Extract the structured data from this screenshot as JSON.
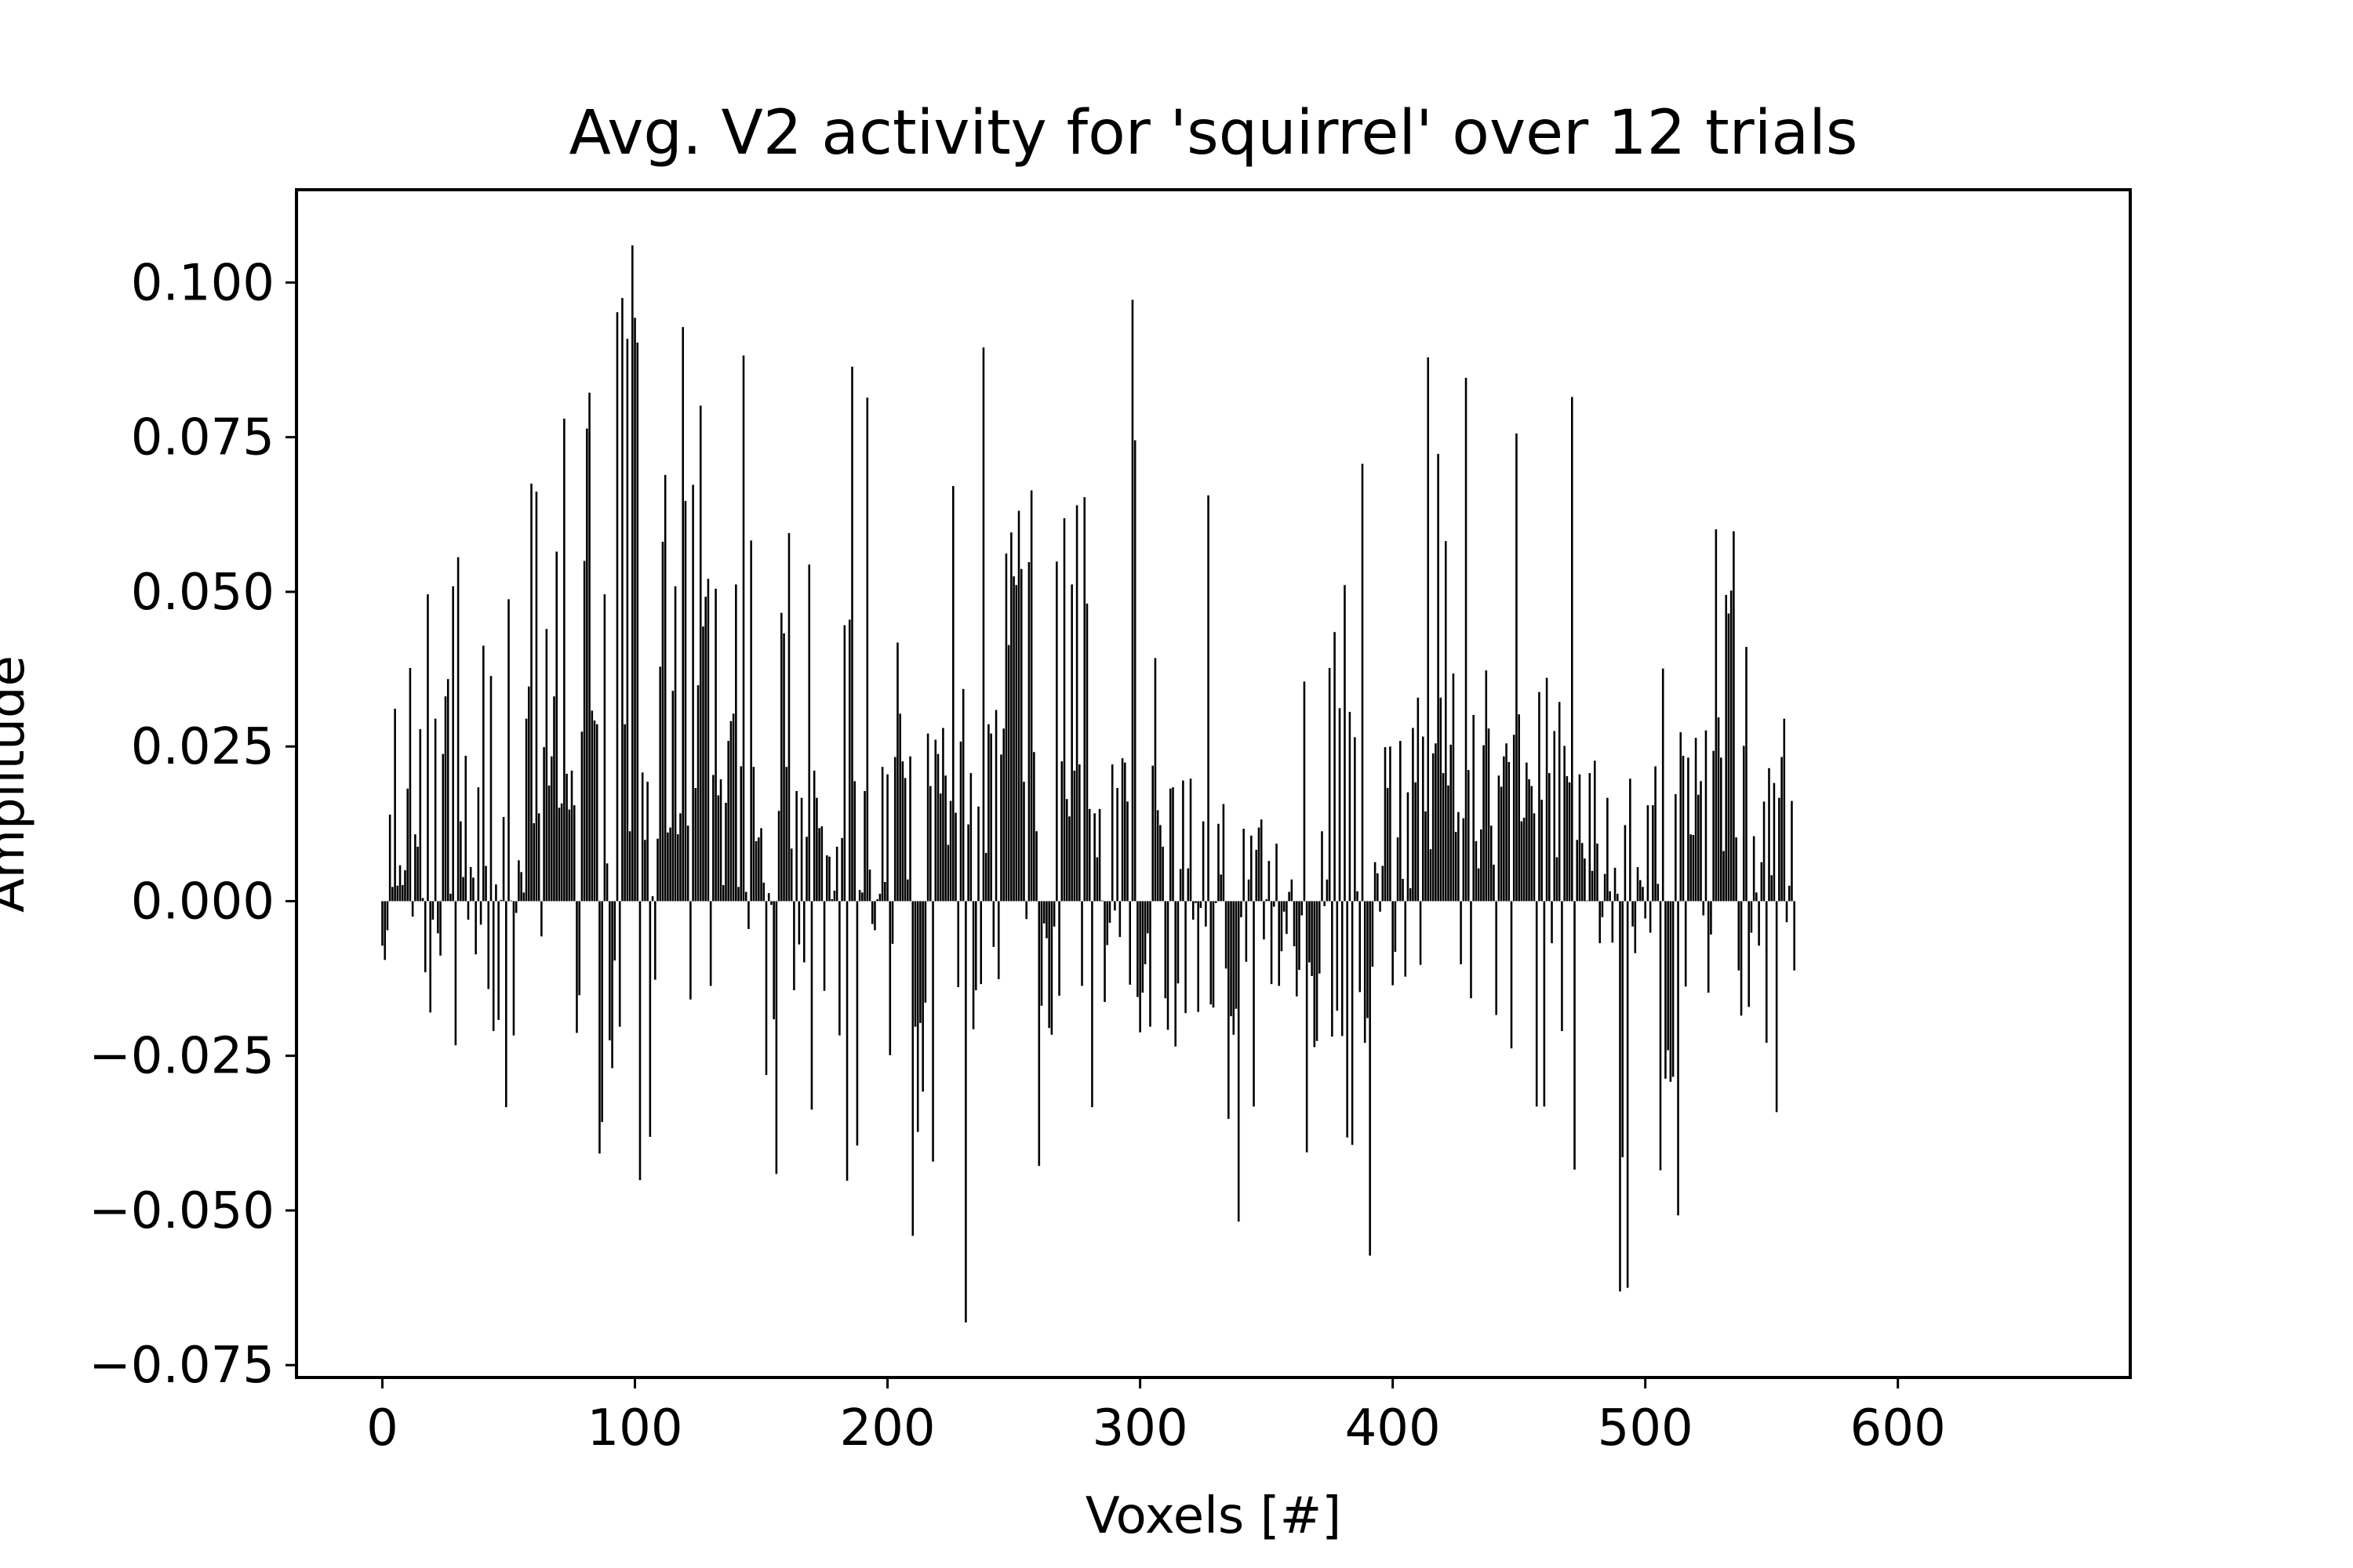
{
  "chart_data": {
    "type": "bar",
    "title": "Avg. V2 activity for 'squirrel' over 12 trials",
    "xlabel": "Voxels [#]",
    "ylabel": "Amplitude",
    "xlim": [
      -34,
      692
    ],
    "ylim": [
      -0.077,
      0.115
    ],
    "xticks": [
      0,
      100,
      200,
      300,
      400,
      500,
      600
    ],
    "xtick_labels": [
      "0",
      "100",
      "200",
      "300",
      "400",
      "500",
      "600"
    ],
    "yticks": [
      -0.075,
      -0.05,
      -0.025,
      0.0,
      0.025,
      0.05,
      0.075,
      0.1
    ],
    "ytick_labels": [
      "−0.075",
      "−0.050",
      "−0.025",
      "0.000",
      "0.025",
      "0.050",
      "0.075",
      "0.100"
    ],
    "grid": false,
    "bar_color": "#000000",
    "n_voxels": 660,
    "x_start": 0,
    "values": [
      -0.0072,
      -0.0095,
      -0.0047,
      0.014,
      0.0023,
      0.0311,
      0.0025,
      0.0058,
      0.0026,
      0.005,
      0.0182,
      0.0377,
      -0.0025,
      0.0108,
      0.0088,
      0.0278,
      0.0005,
      -0.0115,
      0.0496,
      -0.018,
      -0.003,
      0.0295,
      -0.0052,
      -0.0088,
      0.0238,
      0.0331,
      0.0359,
      0.0012,
      0.0509,
      -0.0233,
      0.0556,
      0.0129,
      0.0039,
      0.0235,
      -0.003,
      0.0055,
      0.0038,
      -0.0086,
      0.0184,
      -0.0038,
      0.0413,
      0.0057,
      -0.0142,
      0.0364,
      -0.021,
      0.0027,
      -0.0192,
      0.0002,
      0.0136,
      -0.0333,
      0.0488,
      0.0001,
      -0.0217,
      -0.0019,
      0.0066,
      0.0047,
      0.0014,
      0.0295,
      0.0347,
      0.0675,
      0.0126,
      0.0662,
      0.0142,
      -0.0057,
      0.0249,
      0.044,
      0.0187,
      0.0234,
      0.0331,
      0.0565,
      0.0151,
      0.0158,
      0.078,
      0.0206,
      0.0148,
      0.0211,
      0.0155,
      -0.0213,
      -0.0152,
      0.0274,
      0.055,
      0.0764,
      0.0822,
      0.0308,
      0.0292,
      0.0286,
      -0.0408,
      -0.0357,
      0.0496,
      0.0061,
      -0.0225,
      -0.027,
      -0.0096,
      0.0952,
      -0.0203,
      0.0975,
      0.0286,
      0.0909,
      0.0113,
      0.106,
      0.0943,
      0.0903,
      -0.0451,
      0.0208,
      0.0099,
      0.0193,
      -0.0381,
      0.0008,
      -0.0127,
      0.0101,
      0.0379,
      0.0581,
      0.0689,
      0.0111,
      0.0119,
      0.034,
      0.0509,
      0.0108,
      0.0142,
      0.0928,
      0.0647,
      0.0122,
      -0.0159,
      0.0673,
      0.0183,
      0.0349,
      0.0801,
      0.0444,
      0.0492,
      0.0521,
      -0.0137,
      0.0204,
      0.0505,
      0.0171,
      0.0197,
      0.0026,
      0.0159,
      0.0259,
      0.0291,
      0.0303,
      0.0512,
      0.0023,
      0.0218,
      0.0882,
      0.0015,
      -0.0045,
      0.0583,
      0.0217,
      0.0097,
      0.0103,
      0.0118,
      0.003,
      -0.0281,
      0.0013,
      -0.0006,
      -0.0191,
      -0.0441,
      0.0146,
      0.0466,
      0.0433,
      0.0217,
      0.0595,
      0.0085,
      -0.0144,
      0.0178,
      -0.007,
      0.0167,
      -0.0099,
      0.0104,
      0.0544,
      -0.0337,
      0.0211,
      0.0167,
      0.0118,
      0.0121,
      -0.0145,
      0.0074,
      0.0072,
      0.0003,
      0.0017,
      0.0088,
      -0.0217,
      0.0102,
      0.0446,
      -0.0452,
      0.0455,
      0.0864,
      0.0194,
      -0.0395,
      0.0018,
      0.0014,
      0.0178,
      0.0814,
      0.0051,
      -0.0037,
      -0.0047,
      0.0003,
      0.0012,
      0.0217,
      0.0031,
      0.0205,
      -0.0249,
      -0.0069,
      0.0233,
      0.0418,
      0.0303,
      0.0226,
      0.0199,
      0.0035,
      0.0234,
      -0.0541,
      -0.0203,
      -0.0373,
      -0.0197,
      -0.0308,
      -0.0164,
      0.0271,
      0.0186,
      -0.0421,
      0.0261,
      0.0238,
      0.0174,
      0.028,
      0.0203,
      0.0091,
      0.0162,
      0.0671,
      0.0143,
      -0.0139,
      0.0258,
      0.0343,
      -0.0681,
      0.0124,
      0.0207,
      -0.0207,
      -0.0144,
      0.0153,
      -0.0134,
      0.0895,
      0.0078,
      0.0286,
      0.0271,
      -0.0074,
      0.0309,
      -0.0126,
      0.0237,
      0.0279,
      0.0562,
      0.0414,
      0.0596,
      0.0525,
      0.0511,
      0.0631,
      0.0537,
      0.0193,
      -0.0029,
      0.0548,
      0.0664,
      0.0241,
      0.0113,
      -0.0428,
      -0.0169,
      -0.0036,
      -0.006,
      -0.0205,
      -0.0216,
      -0.0041,
      0.0549,
      -0.0153,
      0.0226,
      0.0619,
      0.0165,
      0.0137,
      0.0512,
      0.0211,
      0.064,
      0.0221,
      -0.0137,
      0.0653,
      0.0481,
      0.0149,
      -0.0333,
      0.0142,
      0.0071,
      0.0149,
      0.0001,
      -0.0163,
      -0.0071,
      -0.0035,
      0.0221,
      -0.0015,
      0.0183,
      -0.0058,
      0.0231,
      0.0224,
      0.0161,
      -0.0135,
      0.0972,
      0.0745,
      -0.0155,
      -0.0212,
      -0.0148,
      -0.0102,
      -0.0052,
      -0.0203,
      0.0219,
      0.0393,
      0.0147,
      0.0123,
      0.0088,
      -0.0157,
      -0.0208,
      0.0182,
      0.0184,
      -0.0235,
      -0.0133,
      0.0052,
      0.0195,
      -0.0181,
      0.0053,
      0.0198,
      -0.003,
      -0.0003,
      -0.0179,
      -0.0011,
      0.0129,
      -0.0041,
      0.0656,
      -0.0167,
      -0.0172,
      -0.0003,
      0.0125,
      0.0043,
      0.0157,
      -0.0109,
      -0.0352,
      -0.0186,
      -0.0216,
      -0.0174,
      -0.0518,
      -0.0026,
      0.0117,
      -0.0098,
      0.0035,
      0.0106,
      -0.0332,
      0.0083,
      0.0119,
      0.0132,
      -0.0062,
      0.0003,
      0.0065,
      -0.0134,
      -0.0009,
      0.0093,
      -0.0137,
      -0.0081,
      -0.0017,
      -0.0053,
      0.0015,
      0.0035,
      -0.0073,
      -0.0154,
      -0.0111,
      -0.0023,
      0.0355,
      -0.0406,
      -0.0099,
      -0.0121,
      -0.0236,
      -0.0226,
      -0.0117,
      0.0113,
      -0.0008,
      0.0035,
      0.0377,
      -0.0219,
      0.0435,
      -0.0177,
      0.0312,
      -0.0218,
      0.0511,
      -0.0382,
      0.0306,
      -0.0394,
      0.0265,
      0.0016,
      -0.0147,
      0.0707,
      -0.0229,
      -0.0189,
      -0.0573,
      -0.0106,
      0.0063,
      0.0045,
      -0.0017,
      0.0057,
      0.0249,
      0.0183,
      0.025,
      -0.0136,
      -0.0082,
      0.0103,
      0.0259,
      0.0036,
      -0.0122,
      0.0176,
      0.0021,
      0.028,
      0.0192,
      0.0329,
      -0.0103,
      0.0266,
      0.0145,
      0.0879,
      0.0084,
      0.0239,
      0.0255,
      0.0723,
      0.0329,
      0.0207,
      0.0582,
      0.0187,
      0.0253,
      0.0368,
      0.0112,
      0.0144,
      -0.0102,
      0.0134,
      0.0846,
      0.0212,
      -0.0157,
      0.0301,
      0.0097,
      0.0053,
      0.0116,
      0.0252,
      0.0373,
      0.0279,
      0.0122,
      0.0059,
      -0.0184,
      0.0203,
      0.0185,
      0.0234,
      0.0255,
      0.0225,
      -0.0238,
      0.0269,
      0.0756,
      0.0302,
      0.0129,
      0.0135,
      0.0224,
      0.0197,
      0.0186,
      0.0142,
      -0.0332,
      0.0338,
      0.0164,
      -0.0332,
      0.0361,
      0.0207,
      -0.0068,
      0.0275,
      0.0071,
      0.0322,
      -0.021,
      0.0251,
      0.0202,
      0.0192,
      0.0815,
      -0.0434,
      0.0099,
      0.0205,
      0.0094,
      0.0069,
      0.0001,
      0.0207,
      0.0049,
      0.0227,
      0.0093,
      -0.0068,
      -0.0026,
      0.0044,
      0.0167,
      0.0016,
      -0.0067,
      0.0054,
      0.0012,
      -0.0631,
      -0.0414,
      0.0123,
      -0.0625,
      0.0198,
      -0.0041,
      -0.0084,
      0.0055,
      0.0034,
      0.0023,
      -0.0028,
      0.0155,
      -0.0051,
      0.0155,
      0.0218,
      0.0028,
      -0.0435,
      0.0376,
      -0.0287,
      -0.0241,
      -0.0292,
      -0.0284,
      0.0173,
      -0.0508,
      0.0273,
      0.0235,
      -0.0138,
      0.0232,
      0.0108,
      0.0107,
      0.0264,
      0.0172,
      0.0194,
      -0.0023,
      0.0276,
      -0.0148,
      -0.0054,
      0.0243,
      0.0601,
      0.0297,
      0.0232,
      0.0081,
      0.0495,
      0.0465,
      0.0502,
      0.0598,
      0.0103,
      -0.0112,
      -0.0185,
      0.0251,
      0.0411,
      -0.0171,
      -0.0051,
      0.0105,
      0.0014,
      -0.0072,
      0.0063,
      0.0161,
      -0.0229,
      0.0215,
      0.0042,
      0.0191,
      -0.0341,
      0.0167,
      0.0233,
      0.0295,
      -0.0034,
      0.0025,
      0.0162,
      -0.0112
    ]
  }
}
